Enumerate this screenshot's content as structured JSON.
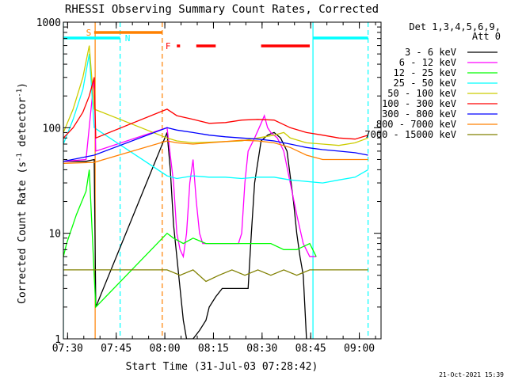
{
  "chart_data": {
    "type": "line",
    "title": "RHESSI Observing Summary Count Rates, Corrected",
    "xlabel": "Start Time (31-Jul-03 07:28:42)",
    "ylabel": "Corrected Count Rate (s^-1 detector^-1)",
    "yscale": "log",
    "ylim": [
      1,
      1000
    ],
    "xlim_minutes": [
      0,
      98
    ],
    "x_ticks": [
      {
        "minute": 1.3,
        "label": "07:30"
      },
      {
        "minute": 16.3,
        "label": "07:45"
      },
      {
        "minute": 31.3,
        "label": "08:00"
      },
      {
        "minute": 46.3,
        "label": "08:15"
      },
      {
        "minute": 61.3,
        "label": "08:30"
      },
      {
        "minute": 76.3,
        "label": "08:45"
      },
      {
        "minute": 91.3,
        "label": "09:00"
      }
    ],
    "y_ticks": [
      {
        "value": 1,
        "label": "1"
      },
      {
        "value": 10,
        "label": "10"
      },
      {
        "value": 100,
        "label": "100"
      },
      {
        "value": 1000,
        "label": "1000"
      }
    ],
    "legend_header": [
      "Det 1,3,4,5,6,9,",
      "Att 0"
    ],
    "series": [
      {
        "name": "3 - 6 keV",
        "color": "#000000",
        "points": [
          [
            0,
            48
          ],
          [
            7,
            48
          ],
          [
            9.5,
            50
          ],
          [
            10,
            2
          ],
          [
            32,
            90
          ],
          [
            33,
            40
          ],
          [
            34,
            12
          ],
          [
            35,
            6
          ],
          [
            36,
            3
          ],
          [
            37,
            1.5
          ],
          [
            38,
            1
          ],
          [
            40,
            1
          ],
          [
            42,
            1.2
          ],
          [
            44,
            1.5
          ],
          [
            45,
            2
          ],
          [
            47,
            2.5
          ],
          [
            49,
            3
          ],
          [
            52,
            3
          ],
          [
            55,
            3
          ],
          [
            57,
            3
          ],
          [
            58,
            10
          ],
          [
            59,
            30
          ],
          [
            61,
            75
          ],
          [
            63,
            85
          ],
          [
            65,
            90
          ],
          [
            67,
            80
          ],
          [
            69,
            60
          ],
          [
            71,
            20
          ],
          [
            72,
            10
          ],
          [
            73,
            6
          ],
          [
            74,
            4
          ],
          [
            75,
            1
          ]
        ]
      },
      {
        "name": "6 - 12 keV",
        "color": "#ff00ff",
        "points": [
          [
            0,
            48
          ],
          [
            7,
            50
          ],
          [
            9.5,
            300
          ],
          [
            10,
            60
          ],
          [
            32,
            100
          ],
          [
            34,
            30
          ],
          [
            35,
            10
          ],
          [
            36,
            7
          ],
          [
            37,
            6
          ],
          [
            38,
            10
          ],
          [
            39,
            30
          ],
          [
            40,
            50
          ],
          [
            41,
            20
          ],
          [
            42,
            10
          ],
          [
            43,
            8
          ],
          [
            45,
            8
          ],
          [
            49,
            8
          ],
          [
            52,
            8
          ],
          [
            54,
            8
          ],
          [
            55,
            10
          ],
          [
            56,
            30
          ],
          [
            57,
            60
          ],
          [
            59,
            80
          ],
          [
            61,
            110
          ],
          [
            62,
            130
          ],
          [
            63,
            100
          ],
          [
            64,
            90
          ],
          [
            66,
            80
          ],
          [
            68,
            60
          ],
          [
            70,
            30
          ],
          [
            72,
            15
          ],
          [
            74,
            8
          ],
          [
            76,
            6
          ],
          [
            78,
            6
          ]
        ]
      },
      {
        "name": "12 - 25 keV",
        "color": "#00ff00",
        "points": [
          [
            0,
            6
          ],
          [
            1,
            8
          ],
          [
            4,
            15
          ],
          [
            7,
            25
          ],
          [
            8,
            40
          ],
          [
            9.5,
            4
          ],
          [
            10,
            2
          ],
          [
            32,
            10
          ],
          [
            34,
            9
          ],
          [
            37,
            8
          ],
          [
            40,
            9
          ],
          [
            44,
            8
          ],
          [
            48,
            8
          ],
          [
            52,
            8
          ],
          [
            56,
            8
          ],
          [
            60,
            8
          ],
          [
            64,
            8
          ],
          [
            68,
            7
          ],
          [
            72,
            7
          ],
          [
            76,
            8
          ],
          [
            78,
            6
          ]
        ]
      },
      {
        "name": "25 - 50 keV",
        "color": "#00ffff",
        "points": [
          [
            0,
            70
          ],
          [
            3,
            120
          ],
          [
            6,
            230
          ],
          [
            8,
            500
          ],
          [
            9.5,
            100
          ],
          [
            32,
            35
          ],
          [
            35,
            33
          ],
          [
            40,
            35
          ],
          [
            45,
            34
          ],
          [
            50,
            34
          ],
          [
            55,
            33
          ],
          [
            60,
            34
          ],
          [
            65,
            34
          ],
          [
            70,
            32
          ],
          [
            75,
            31
          ],
          [
            80,
            30
          ],
          [
            85,
            32
          ],
          [
            90,
            34
          ],
          [
            94,
            40
          ]
        ]
      },
      {
        "name": "50 - 100 keV",
        "color": "#cccc00",
        "points": [
          [
            0,
            90
          ],
          [
            3,
            150
          ],
          [
            6,
            300
          ],
          [
            8,
            600
          ],
          [
            9.5,
            150
          ],
          [
            32,
            80
          ],
          [
            35,
            75
          ],
          [
            40,
            72
          ],
          [
            45,
            73
          ],
          [
            50,
            74
          ],
          [
            55,
            75
          ],
          [
            60,
            80
          ],
          [
            65,
            85
          ],
          [
            68,
            90
          ],
          [
            70,
            80
          ],
          [
            75,
            72
          ],
          [
            80,
            70
          ],
          [
            85,
            68
          ],
          [
            90,
            72
          ],
          [
            94,
            80
          ]
        ]
      },
      {
        "name": "100 - 300 keV",
        "color": "#ff0000",
        "points": [
          [
            0,
            80
          ],
          [
            3,
            100
          ],
          [
            6,
            140
          ],
          [
            8,
            200
          ],
          [
            9.5,
            300
          ],
          [
            10,
            80
          ],
          [
            32,
            150
          ],
          [
            35,
            130
          ],
          [
            40,
            120
          ],
          [
            45,
            110
          ],
          [
            50,
            112
          ],
          [
            55,
            118
          ],
          [
            60,
            120
          ],
          [
            65,
            118
          ],
          [
            70,
            100
          ],
          [
            75,
            90
          ],
          [
            80,
            85
          ],
          [
            85,
            80
          ],
          [
            90,
            78
          ],
          [
            94,
            85
          ]
        ]
      },
      {
        "name": "300 - 800 keV",
        "color": "#0000ff",
        "points": [
          [
            0,
            48
          ],
          [
            9.5,
            55
          ],
          [
            32,
            100
          ],
          [
            35,
            95
          ],
          [
            40,
            90
          ],
          [
            45,
            85
          ],
          [
            50,
            82
          ],
          [
            55,
            80
          ],
          [
            60,
            78
          ],
          [
            65,
            75
          ],
          [
            70,
            70
          ],
          [
            75,
            65
          ],
          [
            80,
            62
          ],
          [
            85,
            60
          ],
          [
            90,
            58
          ],
          [
            94,
            55
          ]
        ]
      },
      {
        "name": "800 - 7000 keV",
        "color": "#ff8000",
        "points": [
          [
            0,
            46
          ],
          [
            9.5,
            47
          ],
          [
            32,
            75
          ],
          [
            35,
            72
          ],
          [
            40,
            70
          ],
          [
            45,
            72
          ],
          [
            50,
            74
          ],
          [
            55,
            76
          ],
          [
            60,
            75
          ],
          [
            65,
            72
          ],
          [
            70,
            65
          ],
          [
            75,
            55
          ],
          [
            80,
            50
          ],
          [
            85,
            50
          ],
          [
            90,
            50
          ],
          [
            94,
            50
          ]
        ]
      },
      {
        "name": "7000 - 15000 keV",
        "color": "#808000",
        "points": [
          [
            0,
            4.5
          ],
          [
            9.5,
            4.5
          ],
          [
            32,
            4.5
          ],
          [
            36,
            4
          ],
          [
            40,
            4.5
          ],
          [
            44,
            3.5
          ],
          [
            48,
            4
          ],
          [
            52,
            4.5
          ],
          [
            56,
            4
          ],
          [
            60,
            4.5
          ],
          [
            64,
            4
          ],
          [
            68,
            4.5
          ],
          [
            72,
            4
          ],
          [
            76,
            4.5
          ],
          [
            80,
            4.5
          ],
          [
            85,
            4.5
          ],
          [
            90,
            4.5
          ],
          [
            94,
            4.5
          ]
        ]
      }
    ],
    "flags": [
      {
        "label": "S",
        "color": "#ff8000",
        "start": 9.5,
        "end": 30.5,
        "label_at": 7
      },
      {
        "label": "N",
        "color": "#00ffff",
        "start": 0,
        "end": 17.5,
        "label_at": 19
      },
      {
        "label": "N",
        "color": "#00ffff",
        "start": 77,
        "end": 94,
        "label_at": null
      },
      {
        "label": "F",
        "color": "#ff0000",
        "start": 35,
        "end": 36,
        "label_at": 31.5
      },
      {
        "label": "",
        "color": "#ff0000",
        "start": 41,
        "end": 47,
        "label_at": null
      },
      {
        "label": "",
        "color": "#ff0000",
        "start": 61,
        "end": 76,
        "label_at": null
      }
    ],
    "vlines": [
      {
        "minute": 0,
        "color": "#00ffff",
        "dashed": false
      },
      {
        "minute": 9.8,
        "color": "#ff8000",
        "dashed": false
      },
      {
        "minute": 17.5,
        "color": "#00ffff",
        "dashed": true
      },
      {
        "minute": 30.5,
        "color": "#ff8000",
        "dashed": true
      },
      {
        "minute": 77,
        "color": "#00ffff",
        "dashed": false
      },
      {
        "minute": 94,
        "color": "#00ffff",
        "dashed": true
      }
    ],
    "footer_timestamp": "21-Oct-2021 15:39"
  }
}
